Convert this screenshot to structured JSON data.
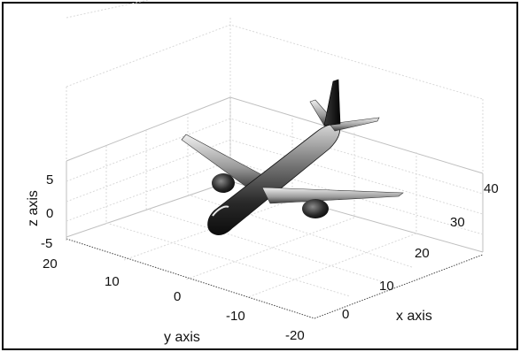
{
  "axes": {
    "x_label": "x axis",
    "y_label": "y axis",
    "z_label": "z axis",
    "x_ticks": [
      "0",
      "10",
      "20",
      "30",
      "40"
    ],
    "y_ticks": [
      "20",
      "10",
      "0",
      "-10",
      "-20"
    ],
    "z_ticks": [
      "5",
      "0",
      "-5"
    ]
  },
  "model": {
    "icon": "airplane-icon",
    "colors": {
      "body_dark": "#1a1a1a",
      "body_mid": "#6e6e6e",
      "body_light": "#cfcfcf",
      "frame": "#000000"
    }
  }
}
